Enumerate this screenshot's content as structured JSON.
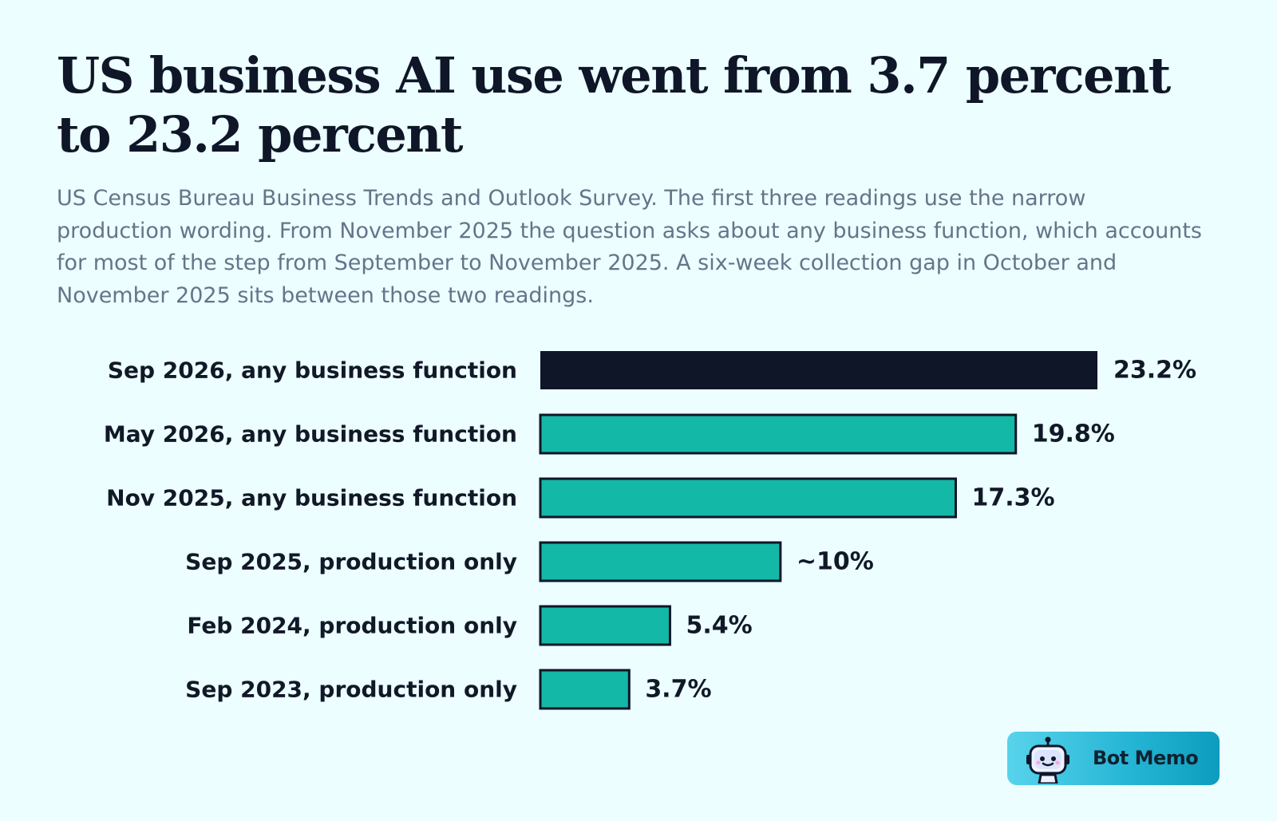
{
  "chart_data": {
    "type": "bar",
    "orientation": "horizontal",
    "title": "US business AI use went from 3.7 percent to 23.2 percent",
    "subtitle": "US Census Bureau Business Trends and Outlook Survey. The first three readings use the narrow production wording. From November 2025 the question asks about any business function, which accounts for most of the step from September to November 2025. A six-week collection gap in October and November 2025 sits between those two readings.",
    "categories": [
      "Sep 2026, any business function",
      "May 2026, any business function",
      "Nov 2025, any business function",
      "Sep 2025, production only",
      "Feb 2024, production only",
      "Sep 2023, production only"
    ],
    "values": [
      23.2,
      19.8,
      17.3,
      10,
      5.4,
      3.7
    ],
    "value_labels": [
      "23.2%",
      "19.8%",
      "17.3%",
      "~10%",
      "5.4%",
      "3.7%"
    ],
    "highlight_index": 0,
    "colors": {
      "highlight": "#0f1628",
      "bar": "#14b8a6",
      "outline": "#0f1628"
    },
    "xlim": [
      0,
      23.2
    ],
    "grid": false
  },
  "badge": {
    "text": "Bot Memo",
    "icon": "robot-icon"
  }
}
